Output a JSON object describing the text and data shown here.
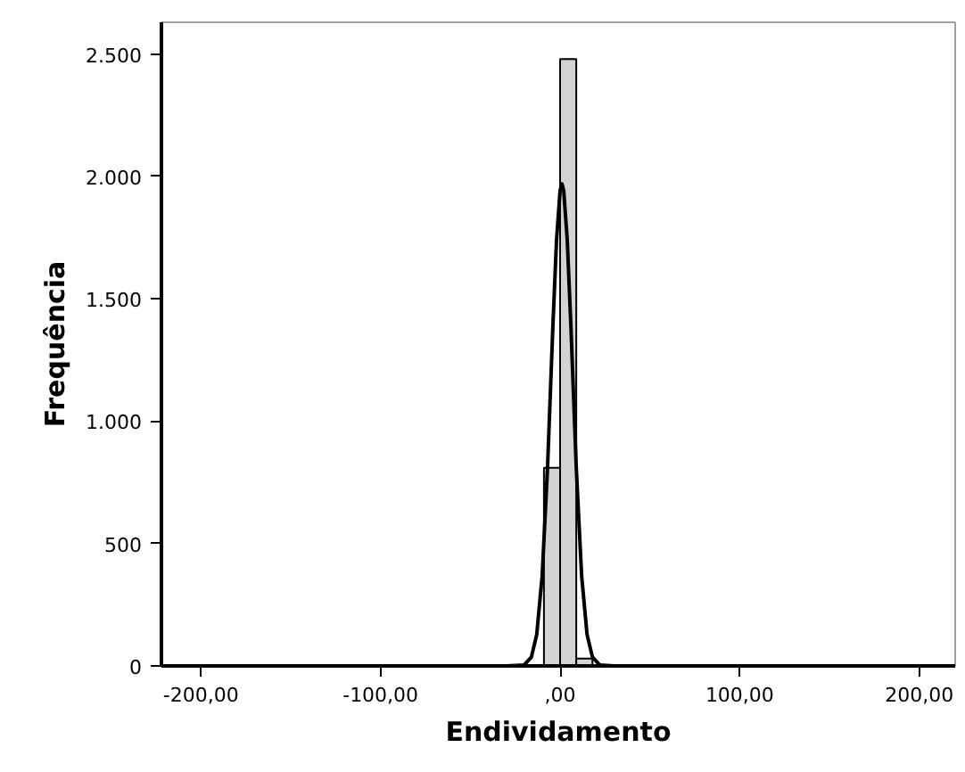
{
  "chart_data": {
    "type": "histogram",
    "xlabel": "Endividamento",
    "ylabel": "Frequência",
    "xlim": [
      -222,
      220
    ],
    "ylim": [
      0,
      2630
    ],
    "xticks": [
      {
        "value": -200,
        "label": "-200,00"
      },
      {
        "value": -100,
        "label": "-100,00"
      },
      {
        "value": 0,
        "label": ",00"
      },
      {
        "value": 100,
        "label": "100,00"
      },
      {
        "value": 200,
        "label": "200,00"
      }
    ],
    "yticks": [
      0,
      {
        "value": 500,
        "label": "500"
      },
      {
        "value": 1000,
        "label": "1.000"
      },
      {
        "value": 1500,
        "label": "1.500"
      },
      {
        "value": 2000,
        "label": "2.000"
      },
      {
        "value": 2500,
        "label": "2.500"
      }
    ],
    "grid": false,
    "series": [
      {
        "color": "#d3d3d3",
        "bins": [
          -9,
          0,
          9,
          18
        ],
        "values": [
          810,
          2480,
          30
        ]
      },
      {
        "type": "line",
        "color": "#000000",
        "x": [
          -222,
          -30,
          -20,
          -16,
          -13,
          -10,
          -7,
          -4,
          -2,
          0,
          1,
          2,
          4,
          6,
          9,
          12,
          15,
          18,
          22,
          30,
          220
        ],
        "values": [
          0,
          0,
          4,
          36,
          129,
          367,
          810,
          1392,
          1738,
          1943,
          1970,
          1943,
          1738,
          1392,
          810,
          367,
          129,
          36,
          4,
          0,
          0
        ]
      }
    ]
  }
}
